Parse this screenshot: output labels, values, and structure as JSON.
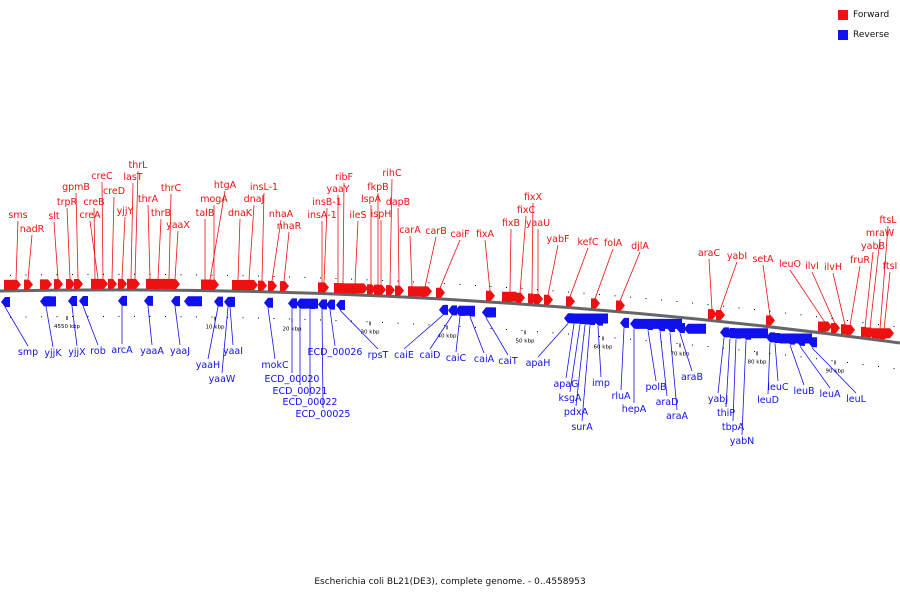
{
  "colors": {
    "forward": "#ee1111",
    "reverse": "#1111ee",
    "backbone": "#666666",
    "tick": "#000000"
  },
  "legend": [
    {
      "label": "Forward",
      "color": "#ee1111"
    },
    {
      "label": "Reverse",
      "color": "#1111ee"
    }
  ],
  "caption": "Escherichia coli BL21(DE3), complete genome. - 0..4558953",
  "axis_ticks": [
    "4550 kbp",
    "10 kbp",
    "20 kbp",
    "30 kbp",
    "40 kbp",
    "50 kbp",
    "60 kbp",
    "70 kbp",
    "80 kbp",
    "90 kbp"
  ],
  "forward_genes": [
    "sms",
    "nadR",
    "slt",
    "trpR",
    "gpmB",
    "creB",
    "creA",
    "creC",
    "creD",
    "yjjY",
    "lasT",
    "thrL",
    "thrA",
    "thrB",
    "thrC",
    "yaaX",
    "htgA",
    "mogA",
    "talB",
    "dnaK",
    "dnaJ",
    "insL-1",
    "nhaA",
    "nhaR",
    "insB-1",
    "insA-1",
    "ribF",
    "yaaY",
    "ileS",
    "lspA",
    "fkpB",
    "ispH",
    "rihC",
    "dapB",
    "carA",
    "carB",
    "caiF",
    "fixA",
    "fixB",
    "fixC",
    "fixX",
    "yaaU",
    "yabF",
    "kefC",
    "folA",
    "djlA",
    "araC",
    "yabI",
    "setA",
    "leuO",
    "ilvI",
    "ilvH",
    "fruR",
    "yabB",
    "mraW",
    "ftsL",
    "ftsI"
  ],
  "reverse_genes": [
    "smp",
    "yjjK",
    "yjjX",
    "rob",
    "arcA",
    "yaaA",
    "yaaJ",
    "yaaH",
    "yaaW",
    "yaaI",
    "mokC",
    "ECD_00020",
    "ECD_00021",
    "ECD_00022",
    "ECD_00025",
    "ECD_00026",
    "rpsT",
    "caiE",
    "caiD",
    "caiC",
    "caiA",
    "caiT",
    "apaH",
    "apaG",
    "ksgA",
    "pdxA",
    "surA",
    "imp",
    "rluA",
    "hepA",
    "polB",
    "araD",
    "araA",
    "araB",
    "yabJ",
    "thiP",
    "tbpA",
    "yabN",
    "leuC",
    "leuD",
    "leuB",
    "leuA",
    "leuL"
  ]
}
